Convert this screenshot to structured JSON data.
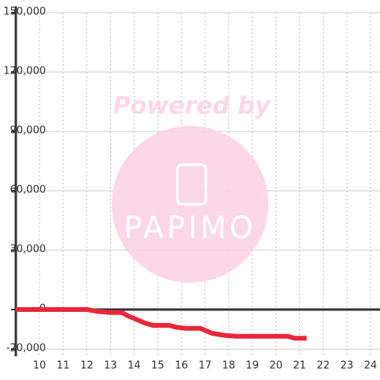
{
  "chart_data": {
    "type": "line",
    "watermark": {
      "line1": "Powered by",
      "line2": "PAPIMO"
    },
    "x": [
      9,
      12,
      12.5,
      13,
      13.5,
      13.7,
      14,
      14.3,
      14.5,
      14.8,
      15.2,
      15.5,
      15.8,
      16.2,
      16.8,
      17,
      17.3,
      17.8,
      18.3,
      19,
      20.5,
      20.8,
      21.3
    ],
    "series": [
      {
        "color": "#e8283a",
        "values": [
          0,
          0,
          -1000,
          -1500,
          -1500,
          -3000,
          -4500,
          -6000,
          -7000,
          -8000,
          -8000,
          -8000,
          -9000,
          -9500,
          -9500,
          -10500,
          -12000,
          -13000,
          -13500,
          -13500,
          -13500,
          -14500,
          -14500
        ]
      }
    ],
    "xlim": [
      9,
      24.4
    ],
    "ylim": [
      -20000,
      150000
    ],
    "xticks": [
      10,
      11,
      12,
      13,
      14,
      15,
      16,
      17,
      18,
      19,
      20,
      21,
      22,
      23,
      24
    ],
    "yticks": [
      {
        "value": -20000,
        "label": "-20,000"
      },
      0,
      {
        "value": 30000,
        "label": "30,000"
      },
      {
        "value": 60000,
        "label": "60,000"
      },
      {
        "value": 90000,
        "label": "90,000"
      },
      {
        "value": 120000,
        "label": "120,000"
      },
      {
        "value": 150000,
        "label": "150,000"
      }
    ],
    "grid": true
  }
}
